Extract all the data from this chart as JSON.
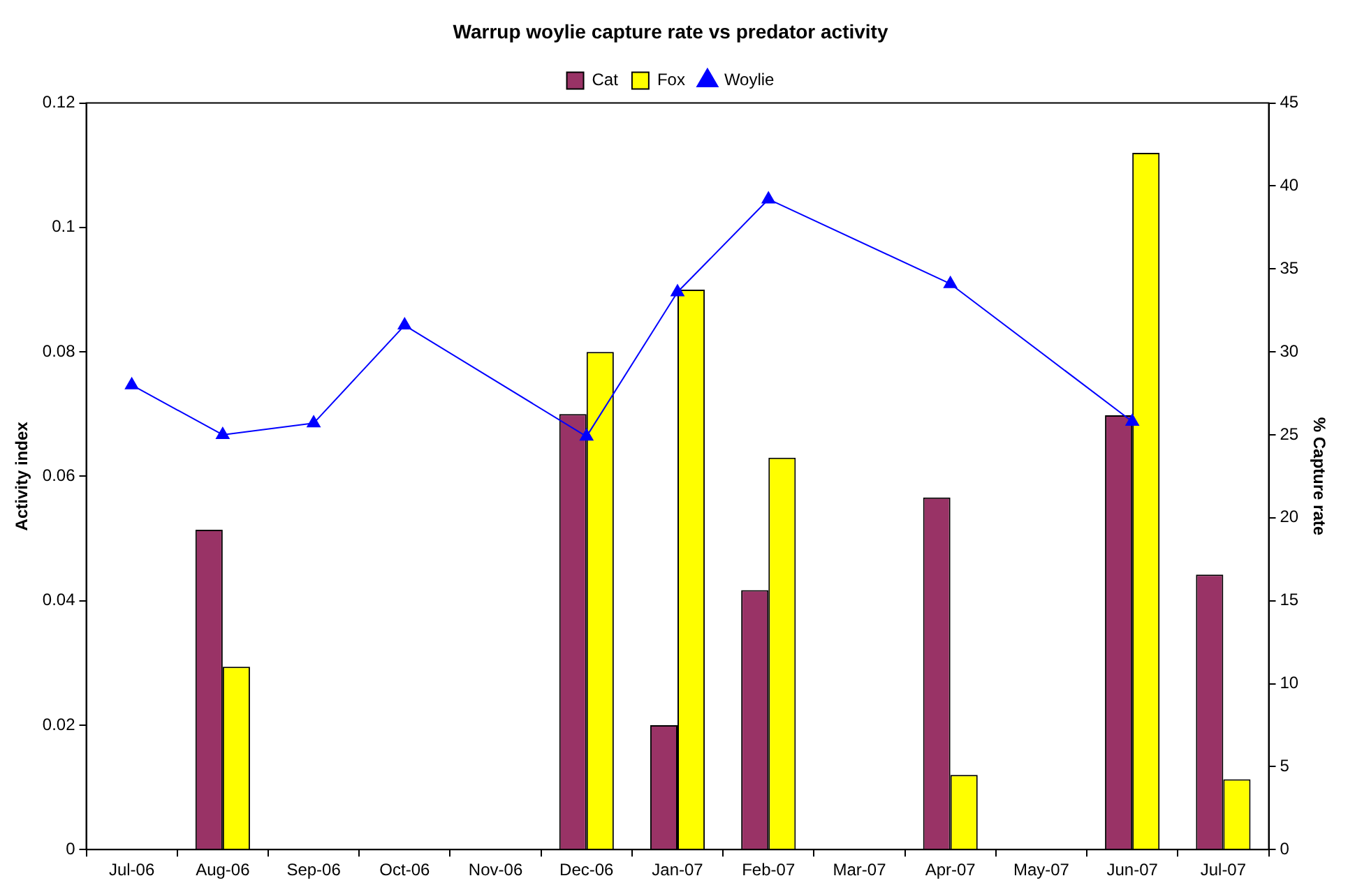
{
  "chart_data": {
    "type": "bar",
    "title": "Warrup woylie capture rate vs predator activity",
    "ylabel": "Activity index",
    "y2label": "% Capture rate",
    "categories": [
      "Jul-06",
      "Aug-06",
      "Sep-06",
      "Oct-06",
      "Nov-06",
      "Dec-06",
      "Jan-07",
      "Feb-07",
      "Mar-07",
      "Apr-07",
      "May-07",
      "Jun-07",
      "Jul-07"
    ],
    "series": [
      {
        "name": "Cat",
        "color": "#993366",
        "values": [
          null,
          0.0514,
          null,
          null,
          null,
          0.07,
          0.02,
          0.0417,
          null,
          0.0566,
          null,
          0.0698,
          0.0442
        ]
      },
      {
        "name": "Fox",
        "color": "#ffff00",
        "values": [
          null,
          0.0294,
          null,
          null,
          null,
          0.08,
          0.09,
          0.063,
          null,
          0.012,
          null,
          0.112,
          0.0113
        ]
      },
      {
        "name": "Woylie",
        "type": "line",
        "axis": "y2",
        "color": "#0000ff",
        "marker": "triangle",
        "values": [
          28.0,
          25.0,
          25.7,
          31.6,
          null,
          24.9,
          33.6,
          39.2,
          null,
          34.1,
          null,
          25.8,
          null
        ]
      }
    ],
    "ylim": [
      0,
      0.12
    ],
    "yticks": [
      0,
      0.02,
      0.04,
      0.06,
      0.08,
      0.1,
      0.12
    ],
    "y2lim": [
      0,
      45
    ],
    "y2ticks": [
      0,
      5,
      10,
      15,
      20,
      25,
      30,
      35,
      40,
      45
    ],
    "grid": false,
    "legend": "top"
  }
}
